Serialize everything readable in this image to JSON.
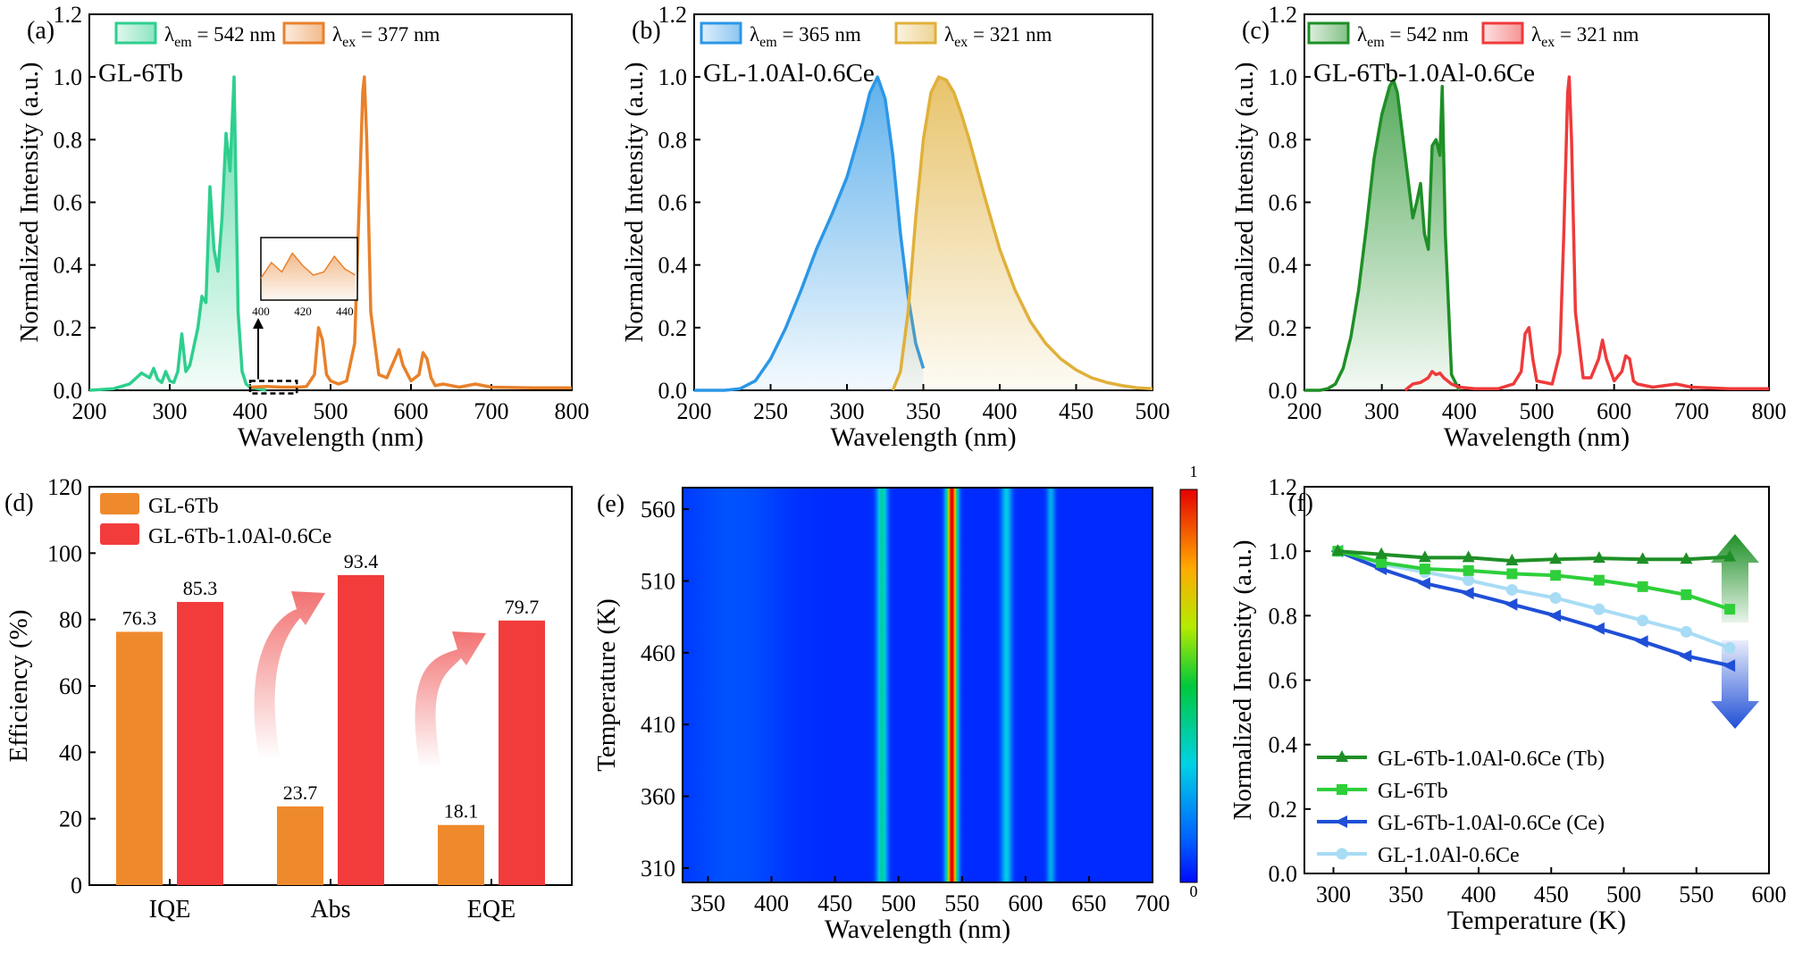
{
  "figure": {
    "chart_data": [
      {
        "id": "a",
        "type": "line",
        "panel_label": "(a)",
        "sample_label": "GL-6Tb",
        "xlabel": "Wavelength (nm)",
        "ylabel": "Normalized Intensity (a.u.)",
        "xlim": [
          200,
          800
        ],
        "ylim": [
          0,
          1.2
        ],
        "xticks": [
          "200",
          "300",
          "400",
          "500",
          "600",
          "700",
          "800"
        ],
        "yticks": [
          "0.0",
          "0.2",
          "0.4",
          "0.6",
          "0.8",
          "1.0",
          "1.2"
        ],
        "legend": [
          {
            "name": "λem = 542 nm",
            "text": "λ",
            "sub": "em",
            "rest": " = 542 nm",
            "color": "#2ecf8e"
          },
          {
            "name": "λex = 377 nm",
            "text": "λ",
            "sub": "ex",
            "rest": " = 377 nm",
            "color": "#e8812b"
          }
        ],
        "series": [
          {
            "name": "excitation",
            "color": "#2ecf8e",
            "fill": true,
            "x": [
              200,
              230,
              250,
              265,
              275,
              280,
              285,
              290,
              295,
              300,
              305,
              310,
              315,
              320,
              325,
              335,
              340,
              345,
              350,
              355,
              360,
              365,
              370,
              375,
              380,
              385,
              390,
              395,
              400,
              410,
              420
            ],
            "y": [
              0.0,
              0.005,
              0.02,
              0.055,
              0.04,
              0.07,
              0.035,
              0.025,
              0.06,
              0.03,
              0.025,
              0.06,
              0.18,
              0.06,
              0.08,
              0.2,
              0.3,
              0.28,
              0.65,
              0.45,
              0.38,
              0.55,
              0.82,
              0.7,
              1.0,
              0.25,
              0.06,
              0.02,
              0.01,
              0.005,
              0.0
            ]
          },
          {
            "name": "emission",
            "color": "#e8812b",
            "fill": false,
            "x": [
              400,
              420,
              440,
              460,
              470,
              480,
              485,
              490,
              495,
              500,
              510,
              520,
              530,
              535,
              540,
              542,
              545,
              550,
              560,
              570,
              580,
              585,
              590,
              600,
              610,
              615,
              620,
              625,
              630,
              640,
              660,
              680,
              700,
              750,
              800
            ],
            "y": [
              0.01,
              0.012,
              0.01,
              0.01,
              0.012,
              0.05,
              0.2,
              0.16,
              0.05,
              0.03,
              0.02,
              0.03,
              0.15,
              0.55,
              0.95,
              1.0,
              0.8,
              0.25,
              0.05,
              0.04,
              0.1,
              0.13,
              0.08,
              0.03,
              0.05,
              0.12,
              0.1,
              0.04,
              0.015,
              0.02,
              0.01,
              0.02,
              0.01,
              0.008,
              0.008
            ]
          }
        ],
        "inset": {
          "xticks": [
            "400",
            "420",
            "440"
          ],
          "x": [
            400,
            405,
            410,
            415,
            420,
            425,
            430,
            435,
            440,
            445
          ],
          "y": [
            0.35,
            0.6,
            0.45,
            0.75,
            0.55,
            0.4,
            0.45,
            0.7,
            0.5,
            0.4
          ]
        }
      },
      {
        "id": "b",
        "type": "line",
        "panel_label": "(b)",
        "sample_label": "GL-1.0Al-0.6Ce",
        "xlabel": "Wavelength (nm)",
        "ylabel": "Normalized Intensity (a.u.)",
        "xlim": [
          200,
          500
        ],
        "ylim": [
          0,
          1.2
        ],
        "xticks": [
          "200",
          "250",
          "300",
          "350",
          "400",
          "450",
          "500"
        ],
        "yticks": [
          "0.0",
          "0.2",
          "0.4",
          "0.6",
          "0.8",
          "1.0",
          "1.2"
        ],
        "legend": [
          {
            "name": "λem = 365 nm",
            "text": "λ",
            "sub": "em",
            "rest": " = 365 nm",
            "color": "#2b97e6"
          },
          {
            "name": "λex = 321 nm",
            "text": "λ",
            "sub": "ex",
            "rest": " = 321 nm",
            "color": "#e0b03a"
          }
        ],
        "series": [
          {
            "name": "excitation",
            "color": "#2b97e6",
            "fill": true,
            "x": [
              200,
              220,
              230,
              240,
              250,
              260,
              270,
              280,
              290,
              300,
              310,
              315,
              320,
              325,
              330,
              335,
              340,
              345,
              350
            ],
            "y": [
              0.0,
              0.0,
              0.005,
              0.03,
              0.1,
              0.2,
              0.32,
              0.45,
              0.56,
              0.68,
              0.85,
              0.95,
              1.0,
              0.93,
              0.75,
              0.5,
              0.3,
              0.15,
              0.07
            ]
          },
          {
            "name": "emission",
            "color": "#e0b03a",
            "fill": true,
            "x": [
              330,
              335,
              340,
              345,
              350,
              355,
              360,
              365,
              370,
              375,
              380,
              390,
              400,
              410,
              420,
              430,
              440,
              450,
              460,
              470,
              480,
              490,
              500
            ],
            "y": [
              0.0,
              0.06,
              0.25,
              0.55,
              0.8,
              0.95,
              1.0,
              0.99,
              0.95,
              0.88,
              0.8,
              0.62,
              0.45,
              0.32,
              0.22,
              0.15,
              0.1,
              0.065,
              0.04,
              0.025,
              0.015,
              0.008,
              0.005
            ]
          }
        ]
      },
      {
        "id": "c",
        "type": "line",
        "panel_label": "(c)",
        "sample_label": "GL-6Tb-1.0Al-0.6Ce",
        "xlabel": "Wavelength (nm)",
        "ylabel": "Normalized Intensity (a.u.)",
        "xlim": [
          200,
          800
        ],
        "ylim": [
          0,
          1.2
        ],
        "xticks": [
          "200",
          "300",
          "400",
          "500",
          "600",
          "700",
          "800"
        ],
        "yticks": [
          "0.0",
          "0.2",
          "0.4",
          "0.6",
          "0.8",
          "1.0",
          "1.2"
        ],
        "legend": [
          {
            "name": "λem = 542 nm",
            "text": "λ",
            "sub": "em",
            "rest": " = 542 nm",
            "color": "#1e8f26"
          },
          {
            "name": "λex = 321 nm",
            "text": "λ",
            "sub": "ex",
            "rest": " = 321 nm",
            "color": "#ef3a3a"
          }
        ],
        "series": [
          {
            "name": "excitation",
            "color": "#1e8f26",
            "fill": true,
            "x": [
              200,
              220,
              230,
              240,
              250,
              260,
              270,
              280,
              290,
              300,
              310,
              315,
              320,
              330,
              340,
              345,
              350,
              355,
              360,
              365,
              370,
              375,
              378,
              382,
              390,
              400
            ],
            "y": [
              0.0,
              0.0,
              0.005,
              0.02,
              0.07,
              0.17,
              0.32,
              0.52,
              0.74,
              0.88,
              0.97,
              0.99,
              0.95,
              0.75,
              0.55,
              0.6,
              0.66,
              0.5,
              0.45,
              0.78,
              0.8,
              0.75,
              0.97,
              0.5,
              0.05,
              0.0
            ]
          },
          {
            "name": "emission",
            "color": "#ef3a3a",
            "fill": false,
            "x": [
              330,
              340,
              350,
              360,
              365,
              370,
              375,
              380,
              390,
              400,
              420,
              450,
              470,
              480,
              485,
              490,
              495,
              500,
              520,
              530,
              535,
              540,
              542,
              545,
              550,
              560,
              570,
              580,
              585,
              590,
              600,
              610,
              615,
              620,
              625,
              630,
              650,
              680,
              700,
              750,
              800
            ],
            "y": [
              0.0,
              0.02,
              0.025,
              0.04,
              0.06,
              0.05,
              0.055,
              0.04,
              0.02,
              0.01,
              0.005,
              0.005,
              0.02,
              0.06,
              0.18,
              0.2,
              0.1,
              0.03,
              0.02,
              0.12,
              0.5,
              0.95,
              1.0,
              0.8,
              0.25,
              0.04,
              0.04,
              0.1,
              0.16,
              0.1,
              0.03,
              0.06,
              0.11,
              0.1,
              0.03,
              0.02,
              0.01,
              0.02,
              0.01,
              0.005,
              0.005
            ]
          }
        ]
      },
      {
        "id": "d",
        "type": "bar",
        "panel_label": "(d)",
        "ylabel": "Efficiency (%)",
        "ylim": [
          0,
          120
        ],
        "yticks": [
          "0",
          "20",
          "40",
          "60",
          "80",
          "100",
          "120"
        ],
        "categories": [
          "IQE",
          "Abs",
          "EQE"
        ],
        "series": [
          {
            "name": "GL-6Tb",
            "color": "#ef8a2c",
            "values": [
              76.3,
              23.7,
              18.1
            ],
            "labels": [
              "76.3",
              "23.7",
              "18.1"
            ]
          },
          {
            "name": "GL-6Tb-1.0Al-0.6Ce",
            "color": "#f23c3c",
            "values": [
              85.3,
              93.4,
              79.7
            ],
            "labels": [
              "85.3",
              "93.4",
              "79.7"
            ]
          }
        ]
      },
      {
        "id": "e",
        "type": "heatmap",
        "panel_label": "(e)",
        "xlabel": "Wavelength (nm)",
        "ylabel": "Temperature (K)",
        "xlim": [
          330,
          700
        ],
        "ylim": [
          300,
          575
        ],
        "xticks": [
          "350",
          "400",
          "450",
          "500",
          "550",
          "600",
          "650",
          "700"
        ],
        "yticks": [
          "310",
          "360",
          "410",
          "460",
          "510",
          "560"
        ],
        "colorbar": {
          "min_label": "0",
          "max_label": "1"
        },
        "peaks": [
          {
            "x": 487,
            "intensity": 0.35,
            "width": 4
          },
          {
            "x": 542,
            "intensity": 1.0,
            "width": 4
          },
          {
            "x": 585,
            "intensity": 0.25,
            "width": 4
          },
          {
            "x": 620,
            "intensity": 0.2,
            "width": 3
          }
        ]
      },
      {
        "id": "f",
        "type": "line",
        "panel_label": "(f)",
        "xlabel": "Temperature (K)",
        "ylabel": "Normalized Intensity (a.u.)",
        "xlim": [
          280,
          600
        ],
        "ylim": [
          0,
          1.2
        ],
        "xticks": [
          "300",
          "350",
          "400",
          "450",
          "500",
          "550",
          "600"
        ],
        "yticks": [
          "0.0",
          "0.2",
          "0.4",
          "0.6",
          "0.8",
          "1.0",
          "1.2"
        ],
        "x": [
          303,
          333,
          363,
          393,
          423,
          453,
          483,
          513,
          543,
          573
        ],
        "series": [
          {
            "name": "GL-6Tb-1.0Al-0.6Ce (Tb)",
            "color": "#1e8f26",
            "marker": "triangle-up",
            "values": [
              1.0,
              0.99,
              0.98,
              0.98,
              0.97,
              0.975,
              0.978,
              0.975,
              0.975,
              0.982
            ]
          },
          {
            "name": "GL-6Tb",
            "color": "#2ecf3a",
            "marker": "square",
            "values": [
              1.0,
              0.965,
              0.945,
              0.94,
              0.93,
              0.925,
              0.91,
              0.89,
              0.865,
              0.82
            ]
          },
          {
            "name": "GL-6Tb-1.0Al-0.6Ce (Ce)",
            "color": "#1f4fd6",
            "marker": "triangle-left",
            "values": [
              1.0,
              0.945,
              0.9,
              0.87,
              0.835,
              0.8,
              0.76,
              0.72,
              0.675,
              0.645
            ]
          },
          {
            "name": "GL-1.0Al-0.6Ce",
            "color": "#a8dcf5",
            "marker": "circle",
            "values": [
              1.0,
              0.96,
              0.935,
              0.91,
              0.88,
              0.855,
              0.82,
              0.785,
              0.75,
              0.7
            ]
          }
        ]
      }
    ]
  }
}
